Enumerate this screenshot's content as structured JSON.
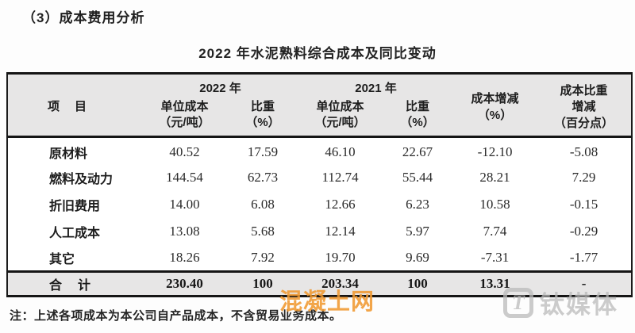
{
  "page": {
    "section_heading": "（3）成本费用分析",
    "table_title": "2022 年水泥熟料综合成本及同比变动",
    "footnote": "注：上述各项成本为本公司自产品成本，不含贸易业务成本。"
  },
  "table": {
    "header": {
      "item": "项　目",
      "group_2022": "2022 年",
      "group_2021": "2021 年",
      "unit_cost_2022": "单位成本\n（元/吨）",
      "share_2022": "比重\n（%）",
      "unit_cost_2021": "单位成本\n（元/吨）",
      "share_2021": "比重\n（%）",
      "cost_change": "成本增减\n（%）",
      "share_change": "成本比重\n增减\n（百分点）"
    },
    "rows": [
      {
        "name": "原材料",
        "uc2022": "40.52",
        "sh2022": "17.59",
        "uc2021": "46.10",
        "sh2021": "22.67",
        "chg": "-12.10",
        "pchg": "-5.08"
      },
      {
        "name": "燃料及动力",
        "uc2022": "144.54",
        "sh2022": "62.73",
        "uc2021": "112.74",
        "sh2021": "55.44",
        "chg": "28.21",
        "pchg": "7.29"
      },
      {
        "name": "折旧费用",
        "uc2022": "14.00",
        "sh2022": "6.08",
        "uc2021": "12.66",
        "sh2021": "6.23",
        "chg": "10.58",
        "pchg": "-0.15"
      },
      {
        "name": "人工成本",
        "uc2022": "13.08",
        "sh2022": "5.68",
        "uc2021": "12.14",
        "sh2021": "5.97",
        "chg": "7.74",
        "pchg": "-0.29"
      },
      {
        "name": "其它",
        "uc2022": "18.26",
        "sh2022": "7.92",
        "uc2021": "19.70",
        "sh2021": "9.69",
        "chg": "-7.31",
        "pchg": "-1.77"
      }
    ],
    "total": {
      "name": "合　计",
      "uc2022": "230.40",
      "sh2022": "100",
      "uc2021": "203.34",
      "sh2021": "100",
      "chg": "13.31",
      "pchg": "-"
    }
  },
  "watermarks": {
    "center_text": "混凝土网",
    "center_color": "#f09930",
    "corner_logo_glyph": "T",
    "corner_text": "钛媒体",
    "corner_color": "#bababa"
  },
  "colors": {
    "header_background": "#e7e6e6",
    "total_row_background": "#e7e6e6",
    "border": "#151515",
    "text": "#1c1c1c"
  }
}
